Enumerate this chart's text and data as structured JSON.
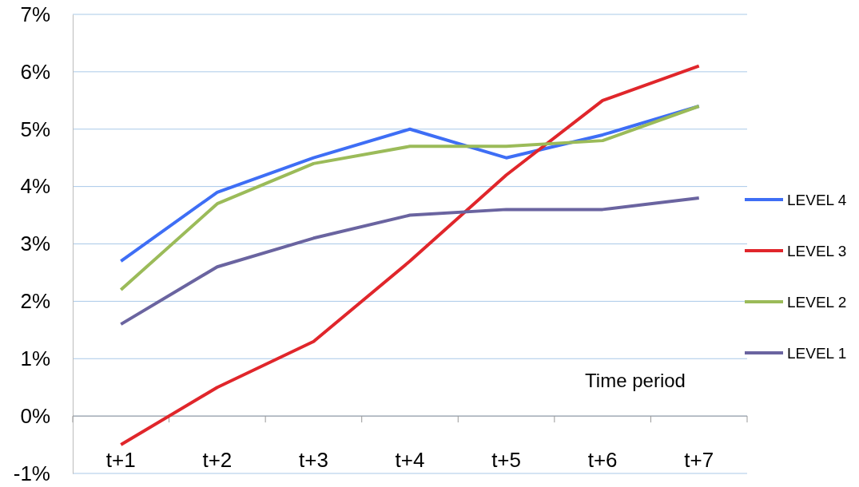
{
  "chart_data": {
    "type": "line",
    "xlabel": "Time period",
    "categories": [
      "t+1",
      "t+2",
      "t+3",
      "t+4",
      "t+5",
      "t+6",
      "t+7"
    ],
    "series": [
      {
        "name": "LEVEL 4",
        "color": "#3e6ef5",
        "values": [
          2.7,
          3.9,
          4.5,
          5.0,
          4.5,
          4.9,
          5.4
        ]
      },
      {
        "name": "LEVEL 3",
        "color": "#e0262b",
        "values": [
          -0.5,
          0.5,
          1.3,
          2.7,
          4.2,
          5.5,
          6.1
        ]
      },
      {
        "name": "LEVEL 2",
        "color": "#9bbb59",
        "values": [
          2.2,
          3.7,
          4.4,
          4.7,
          4.7,
          4.8,
          5.4
        ]
      },
      {
        "name": "LEVEL 1",
        "color": "#6a64a0",
        "values": [
          1.6,
          2.6,
          3.1,
          3.5,
          3.6,
          3.6,
          3.8
        ]
      }
    ],
    "ylim": [
      -1,
      7
    ],
    "yticks": [
      {
        "value": -1,
        "label": "-1%"
      },
      {
        "value": 0,
        "label": "0%"
      },
      {
        "value": 1,
        "label": "1%"
      },
      {
        "value": 2,
        "label": "2%"
      },
      {
        "value": 3,
        "label": "3%"
      },
      {
        "value": 4,
        "label": "4%"
      },
      {
        "value": 5,
        "label": "5%"
      },
      {
        "value": 6,
        "label": "6%"
      },
      {
        "value": 7,
        "label": "7%"
      }
    ],
    "grid": "y",
    "legend": "right",
    "marker": "none",
    "line_style": "solid"
  }
}
